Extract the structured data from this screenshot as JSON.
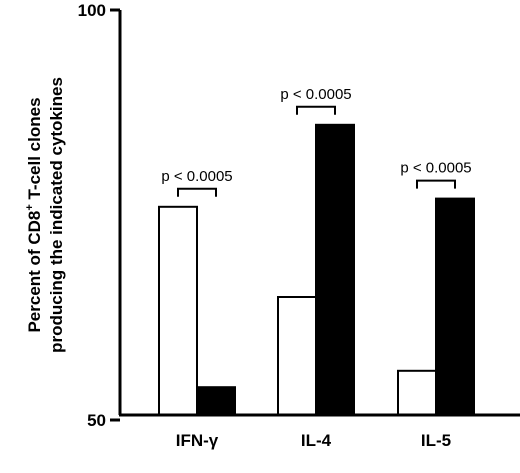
{
  "chart_data": {
    "type": "bar",
    "categories": [
      "IFN-γ",
      "IL-4",
      "IL-5"
    ],
    "series": [
      {
        "values": [
          76,
          65,
          56
        ],
        "color": "#ffffff"
      },
      {
        "values": [
          54,
          86,
          77
        ],
        "color": "#000000"
      }
    ],
    "ylabel_line1": "Percent of CD8",
    "ylabel_sup": "+",
    "ylabel_line1_rest": " T-cell clones",
    "ylabel_line2": "producing the indicated cytokines",
    "ylim": [
      0,
      100
    ],
    "yticks": [
      {
        "value": 50,
        "label": "50"
      },
      {
        "value": 100,
        "label": "100"
      }
    ],
    "annotations": [
      "p < 0.0005",
      "p < 0.0005",
      "p < 0.0005"
    ],
    "grid": false,
    "legend": "none"
  }
}
